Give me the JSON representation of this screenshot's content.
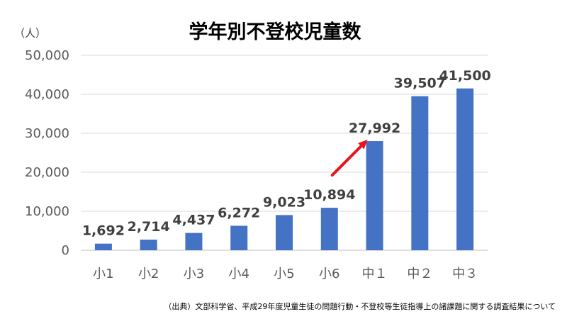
{
  "chart_data": {
    "type": "bar",
    "title": "学年別不登校児童数",
    "unit_label": "（人）",
    "categories": [
      "小1",
      "小2",
      "小3",
      "小4",
      "小5",
      "小6",
      "中１",
      "中２",
      "中３"
    ],
    "values": [
      1692,
      2714,
      4437,
      6272,
      9023,
      10894,
      27992,
      39507,
      41500
    ],
    "data_labels": [
      "1,692",
      "2,714",
      "4,437",
      "6,272",
      "9,023",
      "10,894",
      "27,992",
      "39,507",
      "41,500"
    ],
    "ylim": [
      0,
      50000
    ],
    "yticks": [
      0,
      10000,
      20000,
      30000,
      40000,
      50000
    ],
    "ytick_labels": [
      "0",
      "10,000",
      "20,000",
      "30,000",
      "40,000",
      "50,000"
    ],
    "grid": true,
    "bar_color": "#4472c4",
    "annotation": {
      "type": "arrow",
      "color": "#e8141b",
      "from_category": "小6",
      "to_category": "中１"
    },
    "source": "（出典）文部科学省、平成29年度児童生徒の問題行動・不登校等生徒指導上の諸課題に関する調査結果について"
  }
}
